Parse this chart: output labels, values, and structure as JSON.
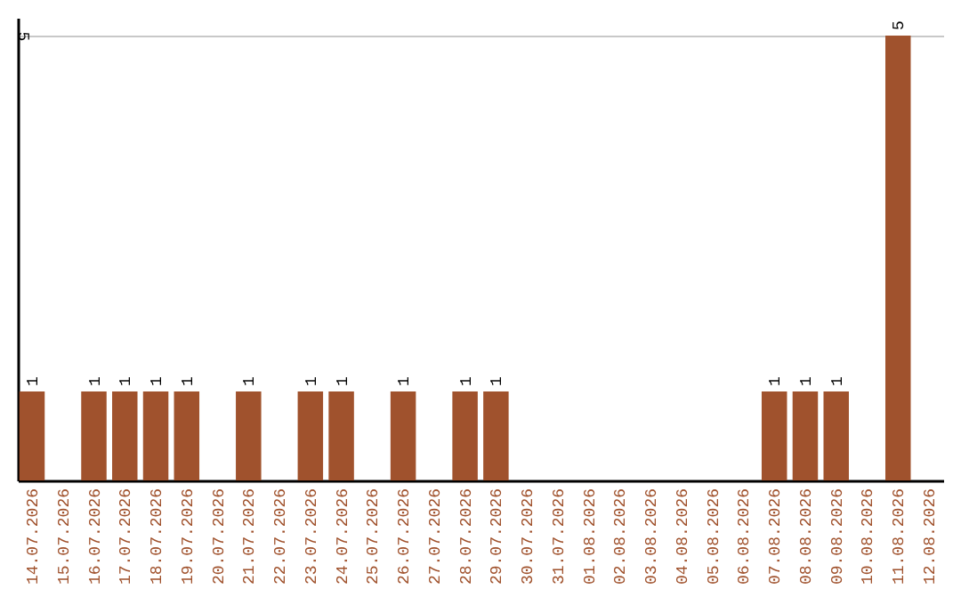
{
  "chart_data": {
    "type": "bar",
    "categories": [
      "14.07.2026",
      "15.07.2026",
      "16.07.2026",
      "17.07.2026",
      "18.07.2026",
      "19.07.2026",
      "20.07.2026",
      "21.07.2026",
      "22.07.2026",
      "23.07.2026",
      "24.07.2026",
      "25.07.2026",
      "26.07.2026",
      "27.07.2026",
      "28.07.2026",
      "29.07.2026",
      "30.07.2026",
      "31.07.2026",
      "01.08.2026",
      "02.08.2026",
      "03.08.2026",
      "04.08.2026",
      "05.08.2026",
      "06.08.2026",
      "07.08.2026",
      "08.08.2026",
      "09.08.2026",
      "10.08.2026",
      "11.08.2026",
      "12.08.2026"
    ],
    "values": [
      1,
      0,
      1,
      1,
      1,
      1,
      0,
      1,
      0,
      1,
      1,
      0,
      1,
      0,
      1,
      1,
      0,
      0,
      0,
      0,
      0,
      0,
      0,
      0,
      1,
      1,
      1,
      0,
      5,
      0
    ],
    "value_labels": [
      "1",
      null,
      "1",
      "1",
      "1",
      "1",
      null,
      "1",
      null,
      "1",
      "1",
      null,
      "1",
      null,
      "1",
      "1",
      null,
      null,
      null,
      null,
      null,
      null,
      null,
      null,
      "1",
      "1",
      "1",
      null,
      "5",
      null
    ],
    "color": "#a0522d",
    "ylim": [
      0,
      5.2
    ],
    "yticks": [
      5
    ],
    "grid": "y"
  }
}
